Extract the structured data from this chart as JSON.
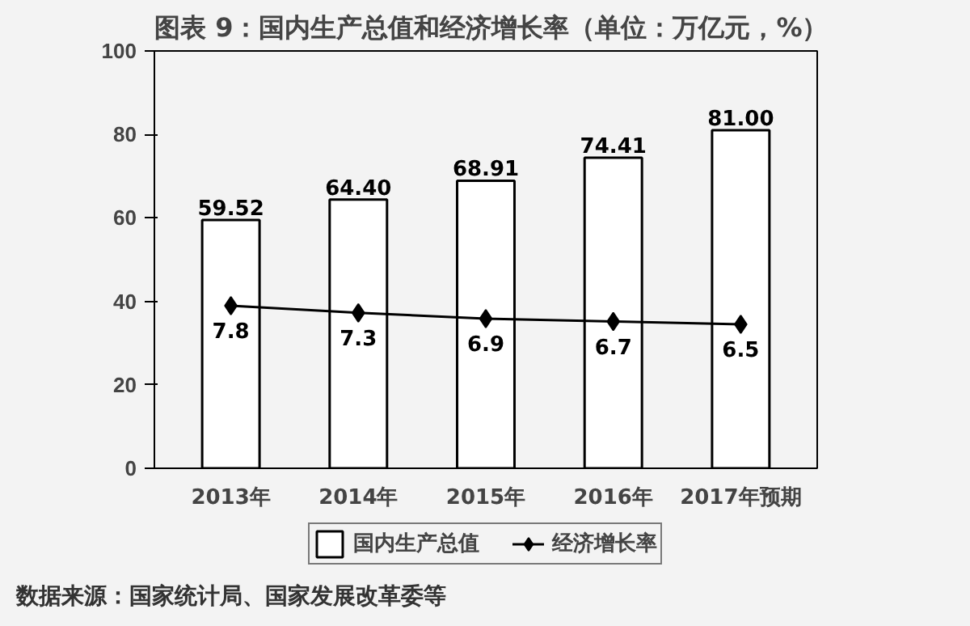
{
  "chart_data": {
    "type": "bar",
    "title": "图表 9：国内生产总值和经济增长率（单位：万亿元，%）",
    "categories": [
      "2013年",
      "2014年",
      "2015年",
      "2016年",
      "2017年预期"
    ],
    "series": [
      {
        "name": "国内生产总值",
        "color": "#ffffff",
        "values": [
          59.52,
          64.4,
          68.91,
          74.41,
          81.0
        ],
        "value_labels": [
          "59.52",
          "64.40",
          "68.91",
          "74.41",
          "81.00"
        ]
      },
      {
        "name": "经济增长率",
        "type": "line",
        "axis": "y2",
        "color": "#000000",
        "marker": "diamond",
        "values": [
          7.8,
          7.3,
          6.9,
          6.7,
          6.5
        ],
        "value_labels": [
          "7.8",
          "7.3",
          "6.9",
          "6.7",
          "6.5"
        ]
      }
    ],
    "ylim": [
      0,
      100
    ],
    "yticks": [
      0,
      20,
      40,
      60,
      80,
      100
    ],
    "y2lim": [
      -3.5,
      25.5
    ],
    "tick_labels": "xy",
    "grid": false,
    "legend": "bottom",
    "annotations": [
      "数据来源：国家统计局、国家发展改革委等"
    ]
  }
}
